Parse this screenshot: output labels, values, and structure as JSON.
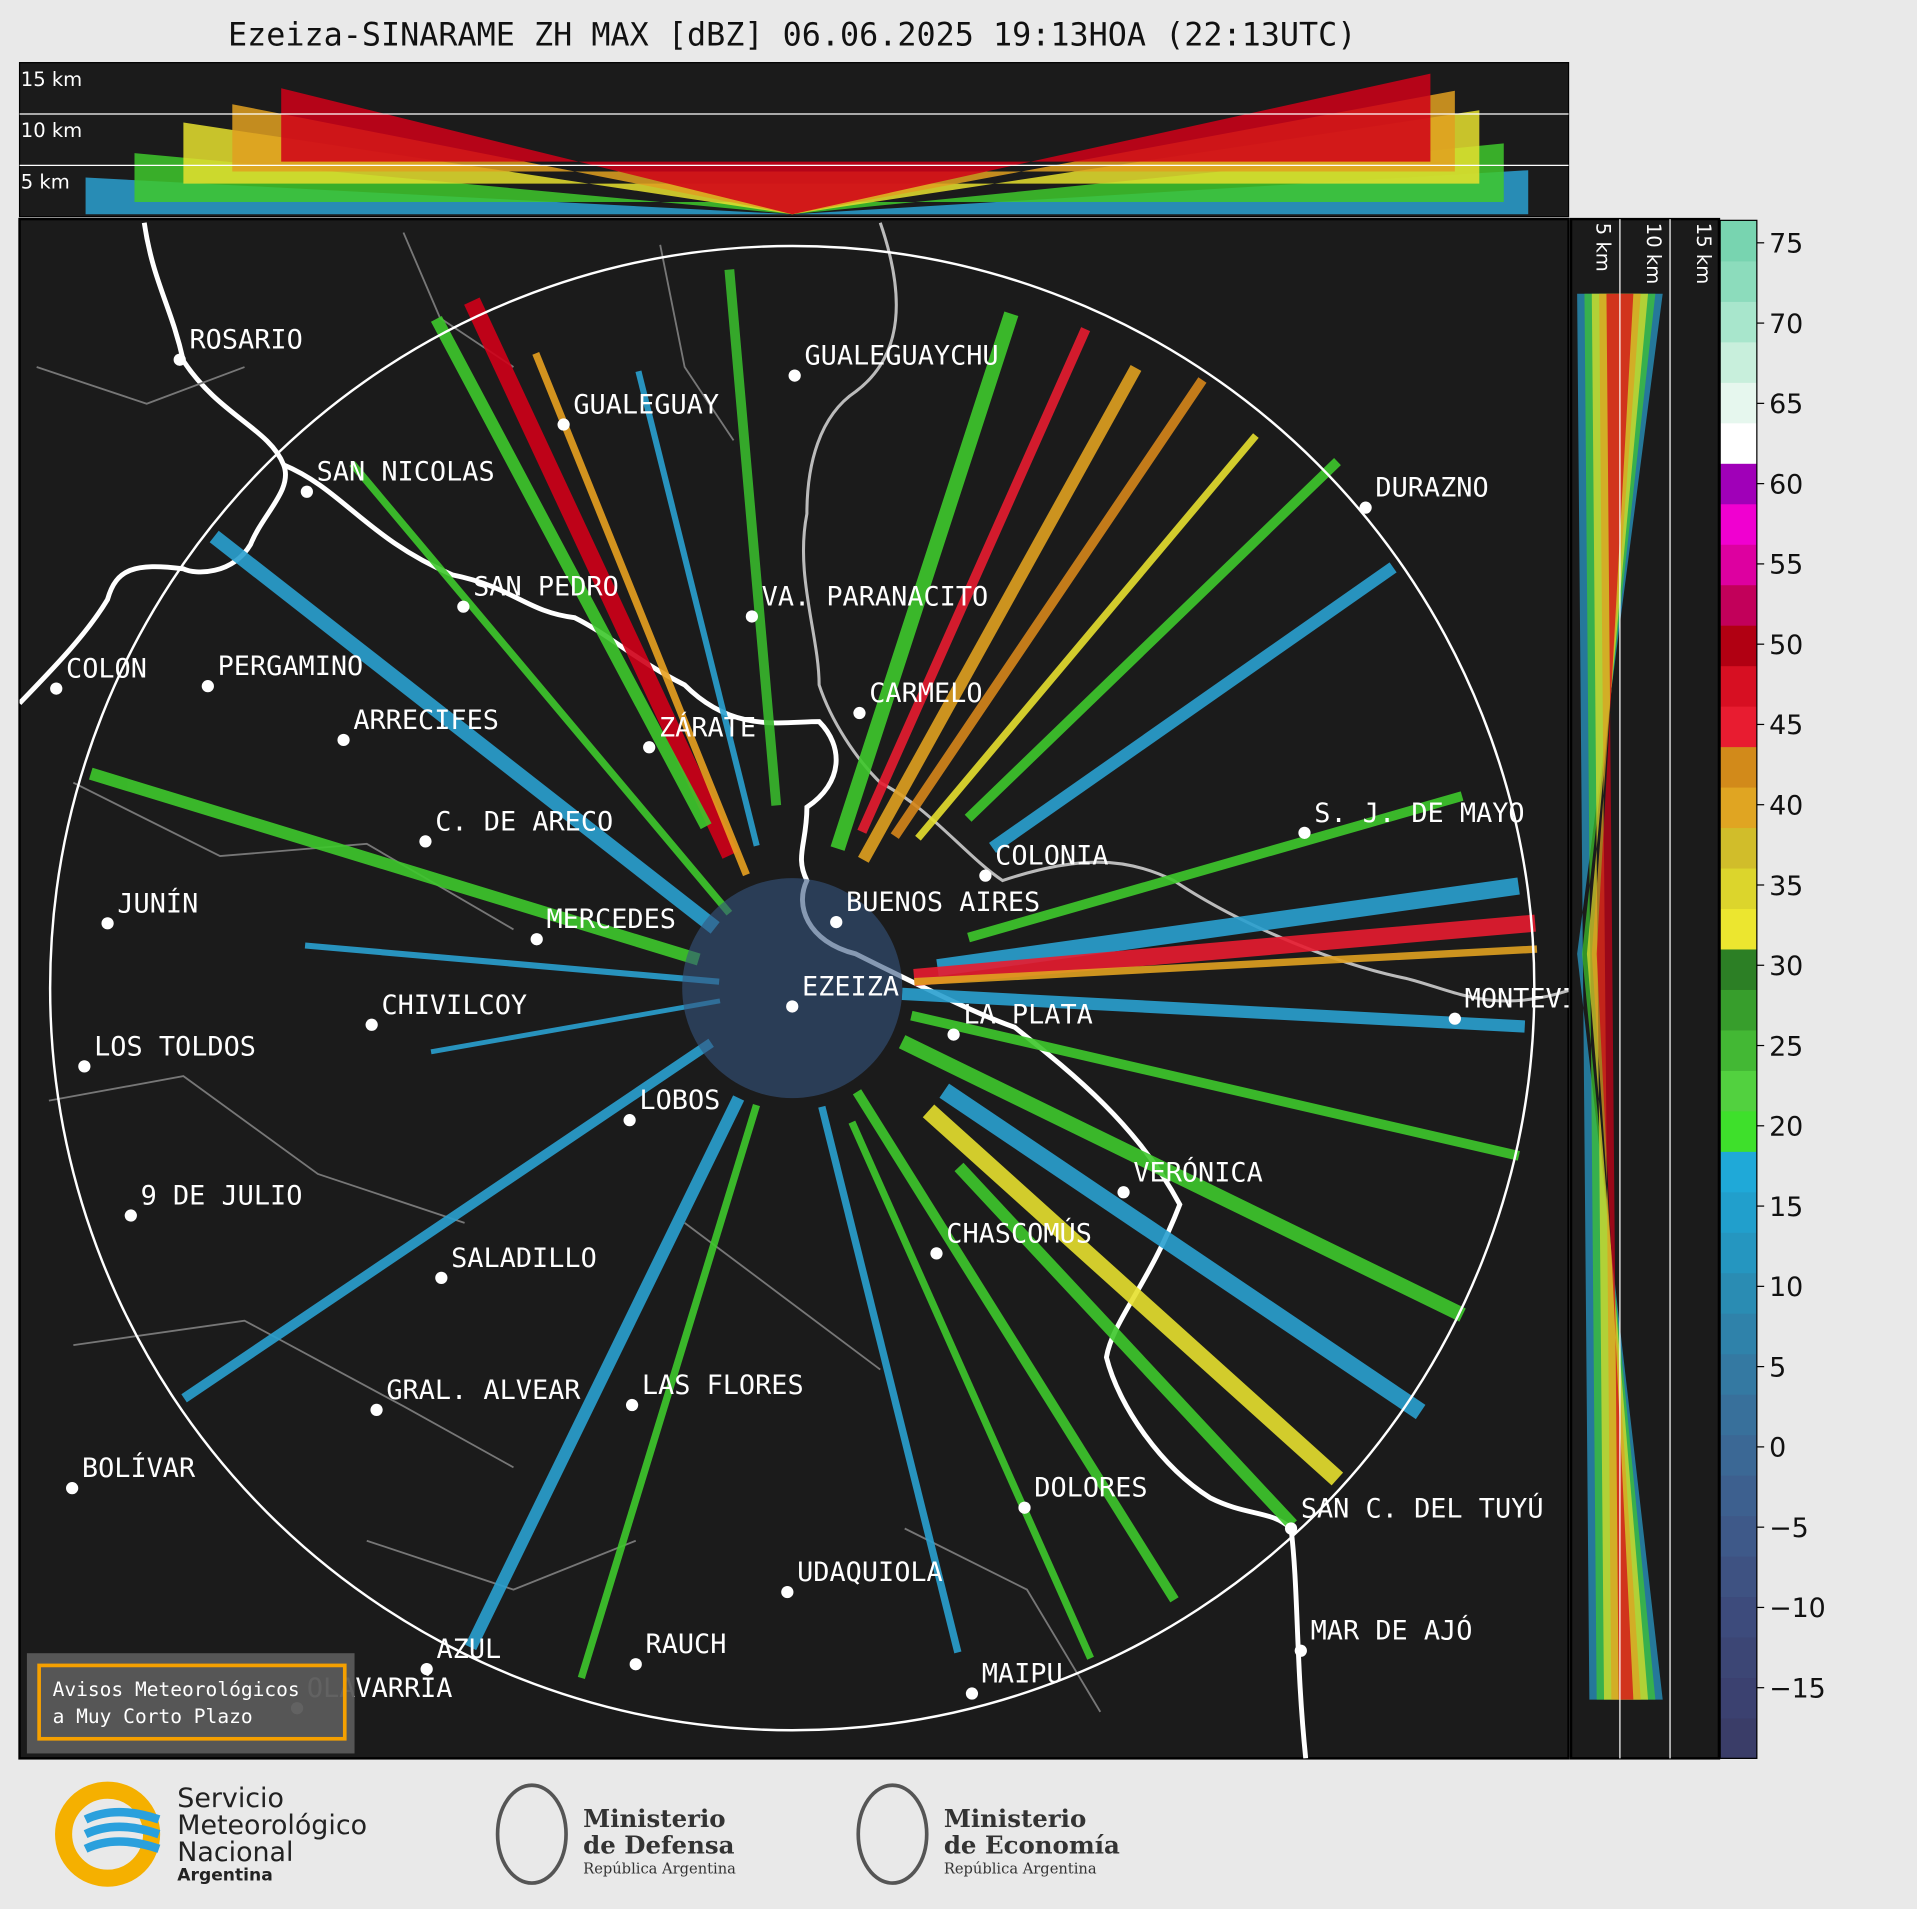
{
  "title": "Ezeiza-SINARAME ZH MAX [dBZ] 06.06.2025 19:13HOA (22:13UTC)",
  "top_panel": {
    "height_labels": [
      "15 km",
      "10 km",
      "5 km"
    ]
  },
  "side_panel": {
    "height_labels": [
      "5 km",
      "10 km",
      "15 km"
    ]
  },
  "cities": [
    "ROSARIO",
    "GUALEGUAYCHU",
    "GUALEGUAY",
    "SAN NICOLAS",
    "DURAZNO",
    "SAN PEDRO",
    "VA. PARANACITO",
    "COLON",
    "PERGAMINO",
    "CARMELO",
    "ARRECIFES",
    "ZÁRATE",
    "S. J. DE MAYO",
    "C. DE ARECO",
    "COLONIA",
    "BUENOS AIRES",
    "JUNÍN",
    "MERCEDES",
    "EZEIZA",
    "LA PLATA",
    "MONTEVIDEO",
    "CHIVILCOY",
    "LOS TOLDOS",
    "LOBOS",
    "VERÓNICA",
    "9 DE JULIO",
    "CHASCOMÚS",
    "SALADILLO",
    "GRAL. ALVEAR",
    "LAS FLORES",
    "DOLORES",
    "BOLÍVAR",
    "SAN C. DEL TUYÚ",
    "UDAQUIOLA",
    "MAR DE AJÓ",
    "RAUCH",
    "AZUL",
    "OLAVARRÍA",
    "MAIPU"
  ],
  "colorbar": {
    "range": [
      -19.4,
      76.4
    ],
    "ticks": [
      {
        "value": -15,
        "label": "−15"
      },
      {
        "value": -10,
        "label": "−10"
      },
      {
        "value": -5,
        "label": "−5"
      },
      0,
      5,
      10,
      15,
      20,
      25,
      30,
      35,
      40,
      45,
      50,
      55,
      60,
      65,
      70,
      75
    ],
    "colors": [
      "#3a3d68",
      "#3b4170",
      "#3c4675",
      "#3d4b7c",
      "#3e5282",
      "#3e5989",
      "#3d608f",
      "#3b6895",
      "#38709b",
      "#3479a2",
      "#2f82aa",
      "#2a8cb3",
      "#2596c0",
      "#219fcc",
      "#1fa9d8",
      "#3ee02b",
      "#52d13f",
      "#43b834",
      "#379e2c",
      "#2c7f25",
      "#ece62f",
      "#dcd52c",
      "#d1bd2a",
      "#e0a522",
      "#d28a1a",
      "#e81c30",
      "#d70f22",
      "#b10012",
      "#c2005a",
      "#dd00a0",
      "#f000d0",
      "#a000b8",
      "#ffffff",
      "#e6f7ee",
      "#c8efdc",
      "#a8e6cc",
      "#8cdcbc",
      "#78d4b0"
    ]
  },
  "notice": [
    "Avisos Meteorológicos",
    "a Muy Corto Plazo"
  ],
  "logos": {
    "smn": [
      "Servicio",
      "Meteorológico",
      "Nacional",
      "Argentina"
    ],
    "defensa": [
      "Ministerio",
      "de Defensa",
      "República Argentina"
    ],
    "economia": [
      "Ministerio",
      "de Economía",
      "República Argentina"
    ]
  }
}
